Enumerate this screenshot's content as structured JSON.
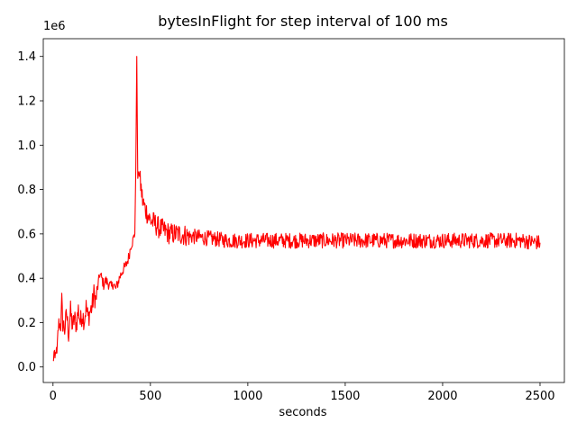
{
  "chart_data": {
    "type": "line",
    "title": "bytesInFlight for step interval of 100 ms",
    "xlabel": "seconds",
    "ylabel": "",
    "y_offset_label": "1e6",
    "xlim": [
      -50,
      2625
    ],
    "ylim": [
      -0.07,
      1.48
    ],
    "x_ticks": [
      0,
      500,
      1000,
      1500,
      2000,
      2500
    ],
    "x_tick_labels": [
      "0",
      "500",
      "1000",
      "1500",
      "2000",
      "2500"
    ],
    "y_ticks": [
      0.0,
      0.2,
      0.4,
      0.6,
      0.8,
      1.0,
      1.2,
      1.4
    ],
    "y_tick_labels": [
      "0.0",
      "0.2",
      "0.4",
      "0.6",
      "0.8",
      "1.0",
      "1.2",
      "1.4"
    ],
    "grid": false,
    "series": [
      {
        "color": "#ff0000",
        "points": [
          [
            0,
            0.02
          ],
          [
            5,
            0.06
          ],
          [
            10,
            0.03
          ],
          [
            15,
            0.08
          ],
          [
            20,
            0.05
          ],
          [
            25,
            0.15
          ],
          [
            30,
            0.2
          ],
          [
            40,
            0.18
          ],
          [
            45,
            0.31
          ],
          [
            50,
            0.2
          ],
          [
            60,
            0.17
          ],
          [
            70,
            0.24
          ],
          [
            80,
            0.15
          ],
          [
            90,
            0.25
          ],
          [
            100,
            0.18
          ],
          [
            110,
            0.22
          ],
          [
            120,
            0.19
          ],
          [
            130,
            0.26
          ],
          [
            140,
            0.2
          ],
          [
            150,
            0.24
          ],
          [
            160,
            0.21
          ],
          [
            170,
            0.27
          ],
          [
            180,
            0.22
          ],
          [
            190,
            0.25
          ],
          [
            200,
            0.27
          ],
          [
            210,
            0.33
          ],
          [
            220,
            0.3
          ],
          [
            230,
            0.36
          ],
          [
            240,
            0.42
          ],
          [
            250,
            0.4
          ],
          [
            260,
            0.37
          ],
          [
            270,
            0.39
          ],
          [
            280,
            0.38
          ],
          [
            290,
            0.37
          ],
          [
            300,
            0.36
          ],
          [
            310,
            0.38
          ],
          [
            320,
            0.35
          ],
          [
            330,
            0.37
          ],
          [
            340,
            0.4
          ],
          [
            350,
            0.42
          ],
          [
            360,
            0.44
          ],
          [
            370,
            0.45
          ],
          [
            380,
            0.47
          ],
          [
            390,
            0.5
          ],
          [
            400,
            0.55
          ],
          [
            410,
            0.57
          ],
          [
            420,
            0.6
          ],
          [
            425,
            0.9
          ],
          [
            430,
            1.4
          ],
          [
            435,
            0.85
          ],
          [
            440,
            0.88
          ],
          [
            450,
            0.82
          ],
          [
            460,
            0.75
          ],
          [
            470,
            0.72
          ],
          [
            480,
            0.7
          ],
          [
            490,
            0.68
          ],
          [
            500,
            0.66
          ],
          [
            520,
            0.65
          ],
          [
            540,
            0.63
          ],
          [
            560,
            0.62
          ],
          [
            580,
            0.61
          ],
          [
            600,
            0.6
          ],
          [
            650,
            0.6
          ],
          [
            700,
            0.59
          ],
          [
            800,
            0.58
          ],
          [
            900,
            0.57
          ],
          [
            1000,
            0.57
          ],
          [
            1100,
            0.57
          ],
          [
            1200,
            0.57
          ],
          [
            1300,
            0.57
          ],
          [
            1400,
            0.57
          ],
          [
            1500,
            0.57
          ],
          [
            1600,
            0.57
          ],
          [
            1700,
            0.57
          ],
          [
            1800,
            0.57
          ],
          [
            1900,
            0.57
          ],
          [
            2000,
            0.57
          ],
          [
            2100,
            0.57
          ],
          [
            2200,
            0.57
          ],
          [
            2300,
            0.57
          ],
          [
            2400,
            0.57
          ],
          [
            2500,
            0.56
          ]
        ]
      }
    ]
  }
}
